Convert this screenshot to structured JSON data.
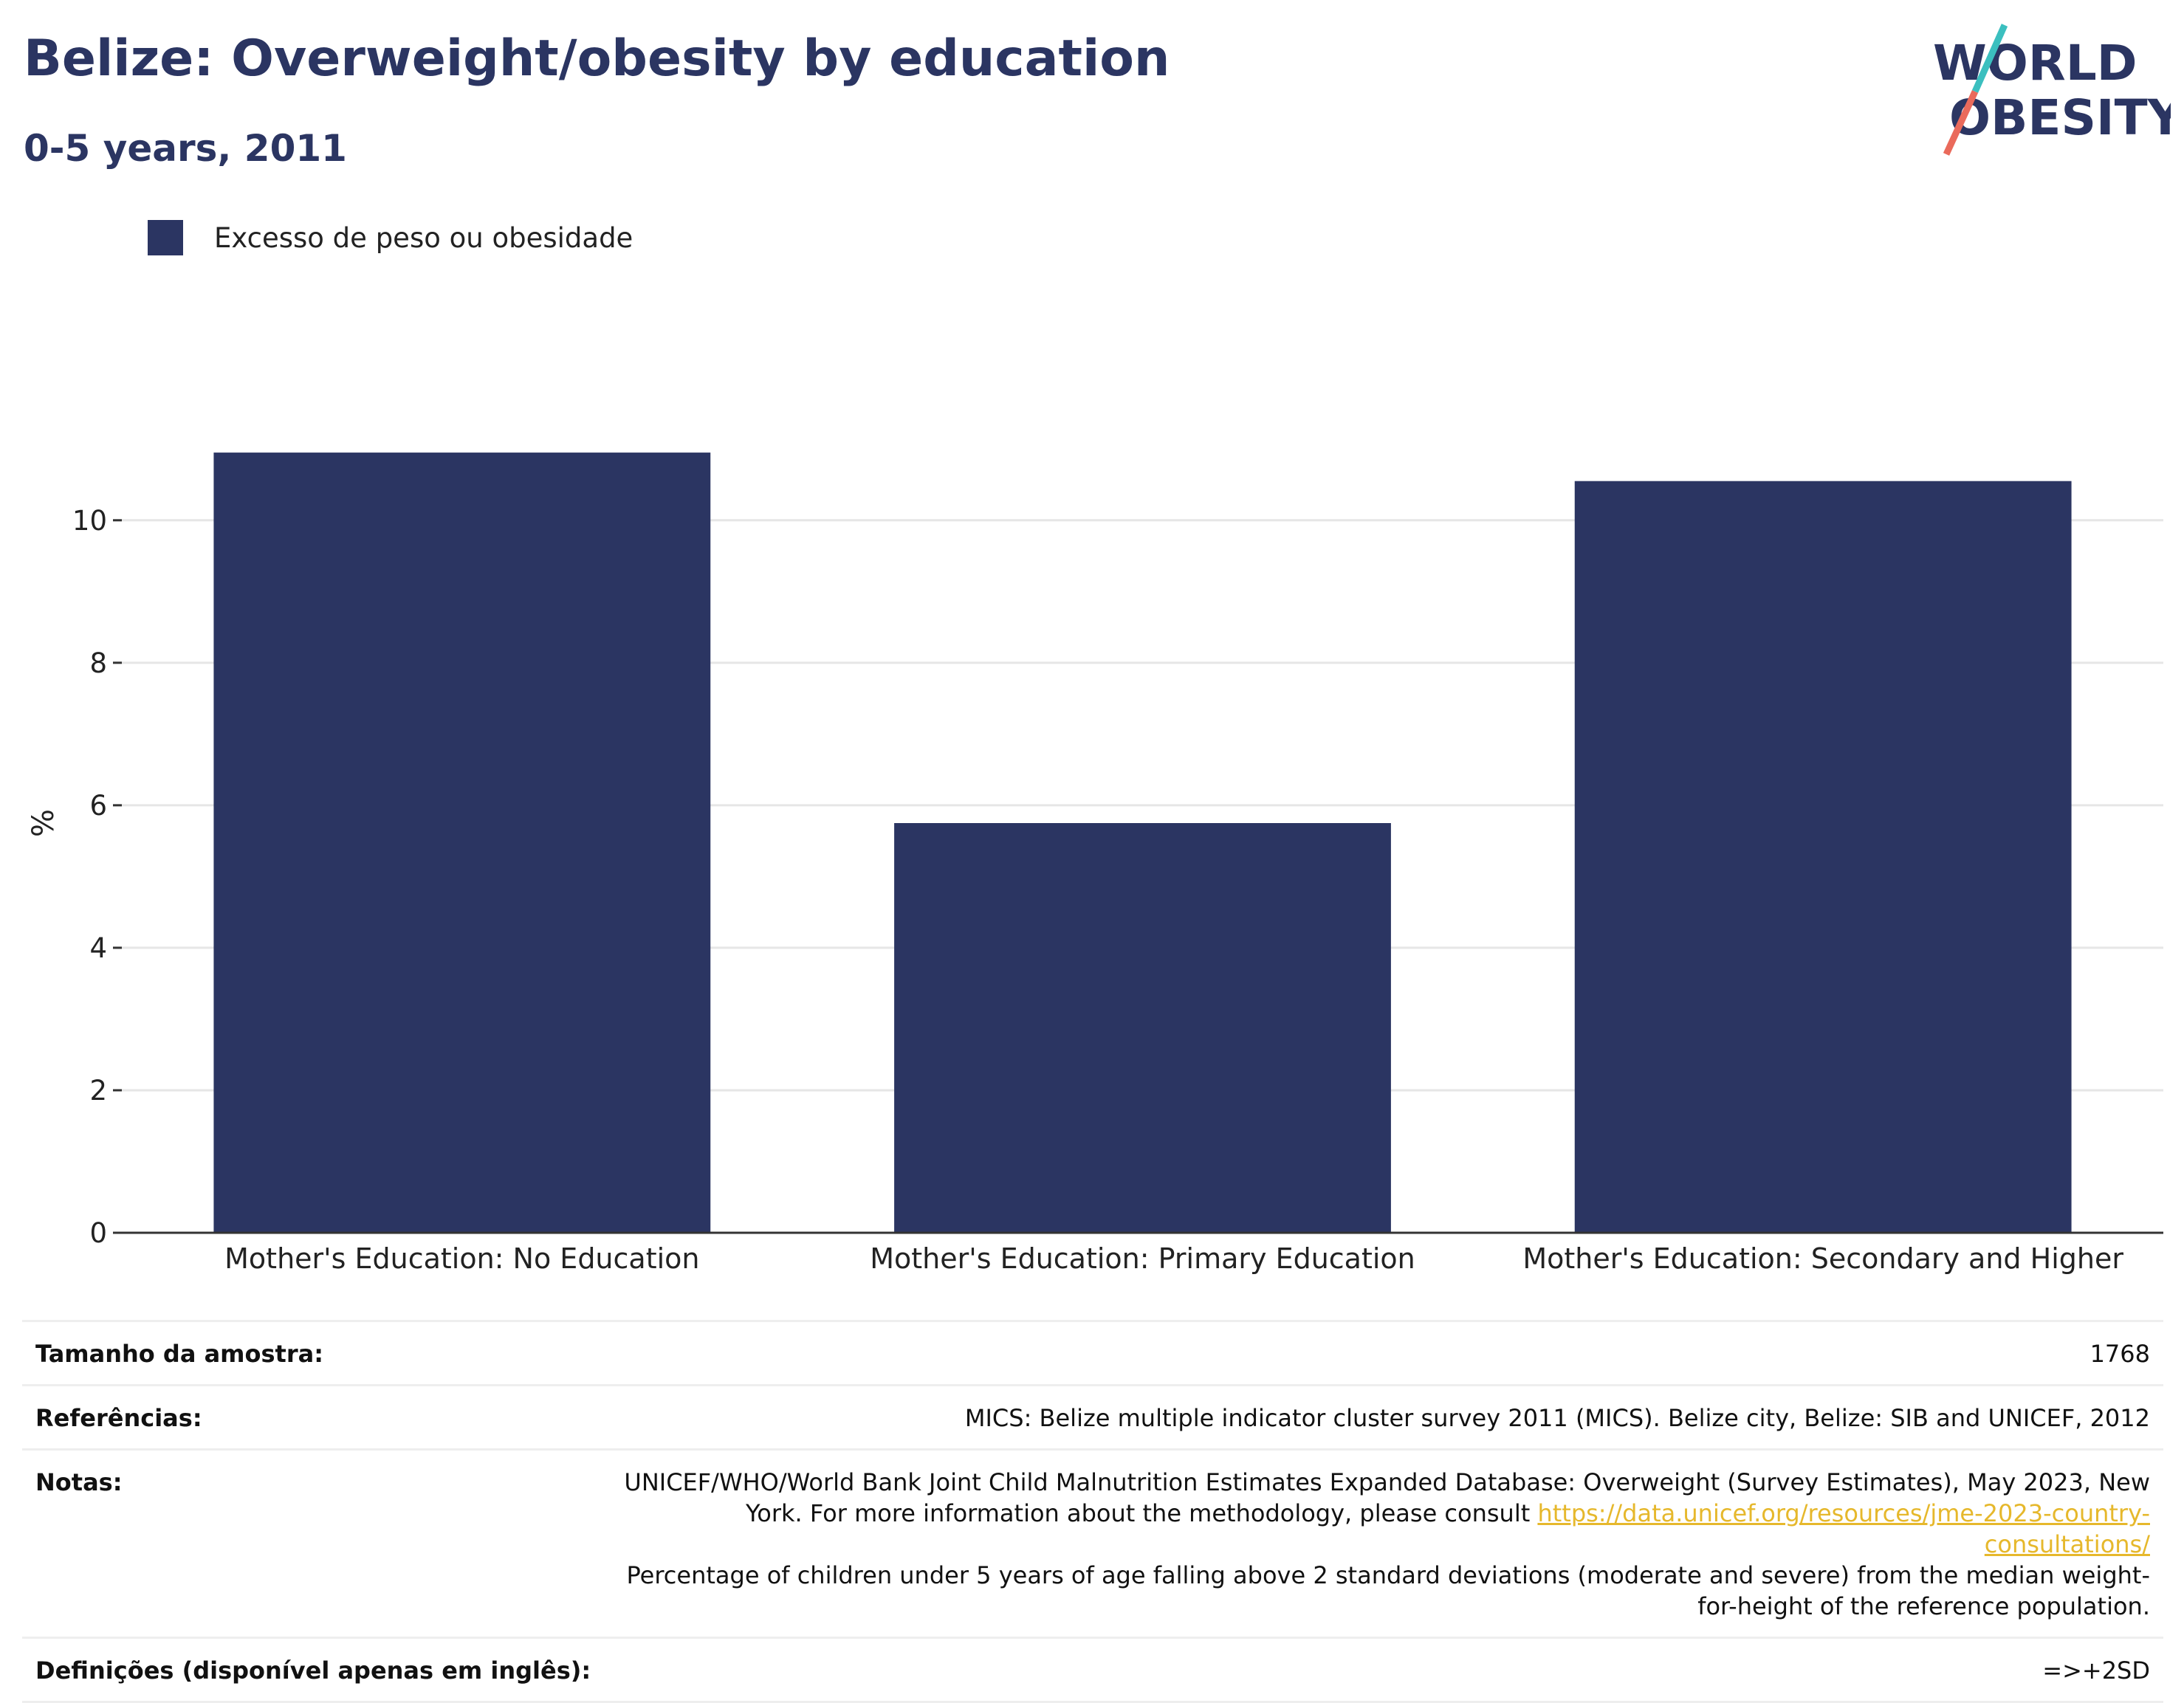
{
  "title": "Belize: Overweight/obesity by education",
  "subtitle": "0-5 years, 2011",
  "logo": {
    "line1": "WORLD",
    "line2": "OBESITY",
    "text_color": "#2b3562",
    "slash_colors": [
      "#3bbfbf",
      "#ea6a5b"
    ]
  },
  "colors": {
    "bar": "#2b3562",
    "grid": "#e6e6e6",
    "axis": "#333333",
    "link": "#e6b82c"
  },
  "chart_data": {
    "type": "bar",
    "categories": [
      "Mother's Education: No Education",
      "Mother's Education: Primary Education",
      "Mother's Education: Secondary and Higher"
    ],
    "series": [
      {
        "name": "Excesso de peso ou obesidade",
        "values": [
          10.95,
          5.75,
          10.55
        ]
      }
    ],
    "ylabel": "%",
    "ylim": [
      0,
      11.5
    ],
    "yticks": [
      0,
      2,
      4,
      6,
      8,
      10
    ],
    "grid": true,
    "legend_position": "top-left"
  },
  "table": {
    "sample_label": "Tamanho da amostra:",
    "sample_value": "1768",
    "refs_label": "Referências:",
    "refs_value": "MICS: Belize multiple indicator cluster survey 2011 (MICS). Belize city, Belize: SIB and UNICEF, 2012",
    "notes_label": "Notas:",
    "notes_text_1": "UNICEF/WHO/World Bank Joint Child Malnutrition Estimates Expanded Database: Overweight (Survey Estimates), May 2023, New York. For more information about the methodology, please consult ",
    "notes_link": "https://data.unicef.org/resources/jme-2023-country-consultations/",
    "notes_text_2": "Percentage of children under 5 years of age falling above 2 standard deviations (moderate and severe) from the median weight-for-height of the reference population.",
    "defs_label": "Definições (disponível apenas em inglês):",
    "defs_value": "=>+2SD"
  }
}
